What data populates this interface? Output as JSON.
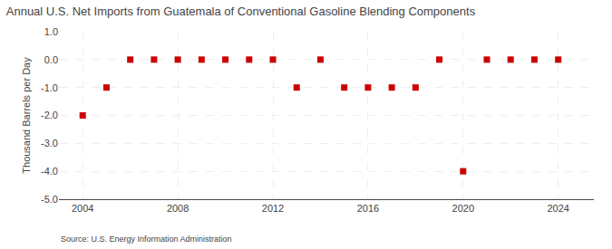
{
  "chart_data": {
    "type": "scatter",
    "title": "Annual U.S. Net Imports from Guatemala of Conventional Gasoline Blending Components",
    "ylabel": "Thousand Barrels per Day",
    "source": "Source: U.S. Energy Information Administration",
    "x": [
      2004,
      2005,
      2006,
      2007,
      2008,
      2009,
      2010,
      2011,
      2012,
      2013,
      2014,
      2015,
      2016,
      2017,
      2018,
      2019,
      2020,
      2021,
      2022,
      2023,
      2024
    ],
    "values": [
      -2.0,
      -1.0,
      0.0,
      0.0,
      0.0,
      0.0,
      0.0,
      0.0,
      0.0,
      -1.0,
      0.0,
      -1.0,
      -1.0,
      -1.0,
      -1.0,
      0.0,
      -4.0,
      0.0,
      0.0,
      0.0,
      0.0
    ],
    "color": "#cc0000",
    "marker": "square",
    "xlim": [
      2003.0,
      2025.5
    ],
    "ylim": [
      -5.0,
      1.0
    ],
    "xticks": [
      2004,
      2008,
      2012,
      2016,
      2020,
      2024
    ],
    "yticks": [
      {
        "value": 1.0,
        "label": "1.0"
      },
      {
        "value": 0.0,
        "label": "0.0"
      },
      {
        "value": -1.0,
        "label": "-1.0"
      },
      {
        "value": -2.0,
        "label": "-2.0"
      },
      {
        "value": -3.0,
        "label": "-3.0"
      },
      {
        "value": -4.0,
        "label": "-4.0"
      },
      {
        "value": -5.0,
        "label": "-5.0"
      }
    ],
    "grid": true
  }
}
